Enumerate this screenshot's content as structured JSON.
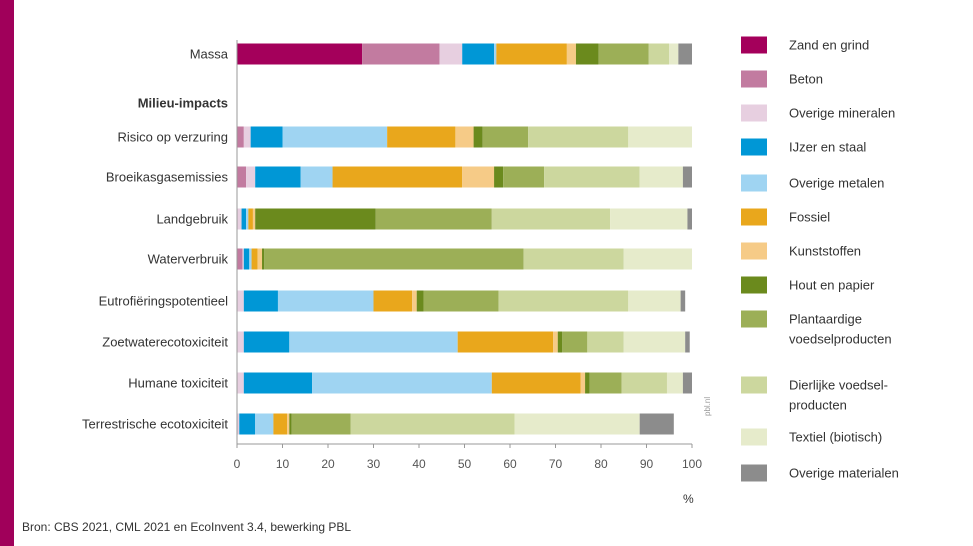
{
  "colors": {
    "accent_bar": "#a0005a",
    "axis": "#999999"
  },
  "chart_data": {
    "type": "bar",
    "orientation": "horizontal",
    "stacked": true,
    "xlim": [
      0,
      100
    ],
    "x_ticks": [
      0,
      10,
      20,
      30,
      40,
      50,
      60,
      70,
      80,
      90,
      100
    ],
    "xunit": "%",
    "grid": false,
    "legend_position": "right",
    "group_heading": "Milieu-impacts",
    "categories": [
      "Massa",
      "Risico op verzuring",
      "Broeikasgasemissies",
      "Landgebruik",
      "Waterverbruik",
      "Eutrofiëringspotentieel",
      "Zoetwaterecotoxiciteit",
      "Humane toxiciteit",
      "Terrestrische ecotoxiciteit"
    ],
    "series": [
      {
        "name": "Zand en grind",
        "color": "#a4005b",
        "values": [
          27.5,
          0,
          0,
          0,
          0,
          0,
          0,
          0,
          0
        ]
      },
      {
        "name": "Beton",
        "color": "#c27ba0",
        "values": [
          17,
          1.5,
          2,
          0,
          1.2,
          0,
          0,
          0,
          0
        ]
      },
      {
        "name": "Overige mineralen",
        "color": "#e7cfe0",
        "values": [
          5,
          1.5,
          2,
          1,
          0.3,
          1.5,
          1.5,
          1.5,
          0.5
        ]
      },
      {
        "name": "IJzer en staal",
        "color": "#0097d6",
        "values": [
          7,
          7,
          10,
          1,
          1.2,
          7.5,
          10,
          15,
          3.5
        ]
      },
      {
        "name": "Overige metalen",
        "color": "#9fd4f2",
        "values": [
          0.5,
          23,
          7,
          0.5,
          0.5,
          21,
          37,
          39.5,
          4
        ]
      },
      {
        "name": "Fossiel",
        "color": "#e9a71c",
        "values": [
          15.5,
          15,
          28.5,
          1,
          1.3,
          8.5,
          21,
          19.5,
          3
        ]
      },
      {
        "name": "Kunststoffen",
        "color": "#f6cb87",
        "values": [
          2,
          4,
          7,
          0.5,
          1,
          1,
          1,
          1,
          0.5
        ]
      },
      {
        "name": "Hout en papier",
        "color": "#6b8a1d",
        "values": [
          5,
          2,
          2,
          26.5,
          0.5,
          1.5,
          1,
          1,
          0.5
        ]
      },
      {
        "name": "Plantaardige voedselproducten",
        "color": "#9caf57",
        "values": [
          11,
          10,
          9,
          25.5,
          57,
          16.5,
          5.5,
          7,
          13
        ]
      },
      {
        "name": "Dierlijke voedselproducten",
        "color": "#ccd79e",
        "values": [
          4.5,
          22,
          21,
          26,
          22,
          28.5,
          8,
          10,
          36
        ]
      },
      {
        "name": "Textiel (biotisch)",
        "color": "#e6ebcb",
        "values": [
          2,
          14,
          9.5,
          17,
          15,
          11.5,
          13.5,
          3.5,
          27.5
        ]
      },
      {
        "name": "Overige materialen",
        "color": "#8c8c8c",
        "values": [
          3,
          0,
          2,
          1,
          0,
          1,
          1,
          2,
          7.5
        ]
      }
    ]
  },
  "legend_lines": [
    [
      "Zand en grind"
    ],
    [
      "Beton"
    ],
    [
      "Overige mineralen"
    ],
    [
      "IJzer en staal"
    ],
    [
      "Overige metalen"
    ],
    [
      "Fossiel"
    ],
    [
      "Kunststoffen"
    ],
    [
      "Hout en papier"
    ],
    [
      "Plantaardige",
      "voedselproducten"
    ],
    [
      "Dierlijke voedsel-",
      "producten"
    ],
    [
      "Textiel (biotisch)"
    ],
    [
      "Overige materialen"
    ]
  ],
  "source_note": "Bron: CBS 2021, CML 2021 en EcoInvent 3.4, bewerking PBL",
  "watermark": "pbl.nl"
}
